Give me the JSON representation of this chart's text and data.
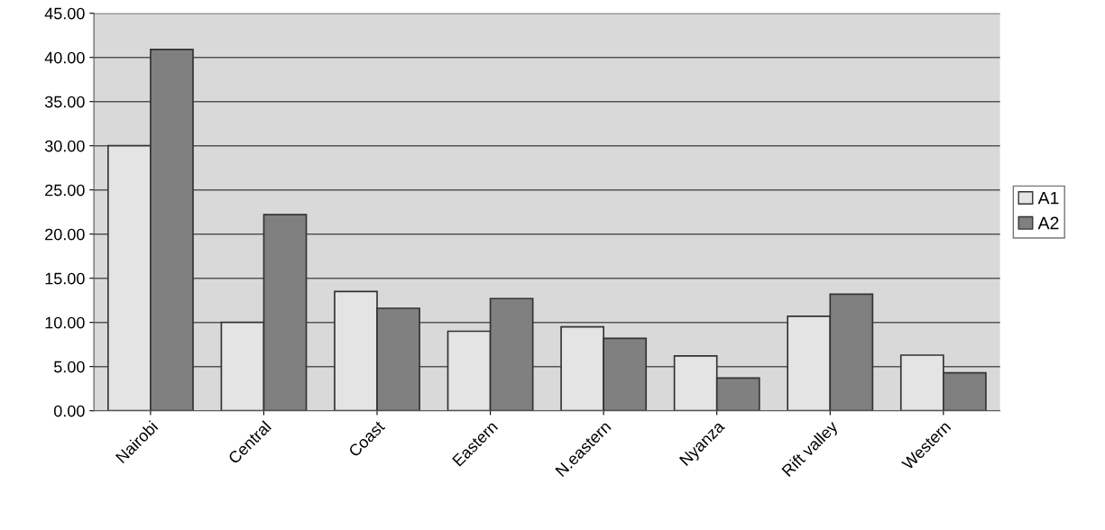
{
  "chart_data": {
    "type": "bar",
    "categories": [
      "Nairobi",
      "Central",
      "Coast",
      "Eastern",
      "N.eastern",
      "Nyanza",
      "Rift valley",
      "Western"
    ],
    "series": [
      {
        "name": "A1",
        "color": "#e4e4e4",
        "values": [
          30.0,
          10.0,
          13.5,
          9.0,
          9.5,
          6.2,
          10.7,
          6.3
        ]
      },
      {
        "name": "A2",
        "color": "#808080",
        "values": [
          40.9,
          22.2,
          11.6,
          12.7,
          8.2,
          3.7,
          13.2,
          4.3
        ]
      }
    ],
    "ylim": [
      0,
      45
    ],
    "yticks": [
      {
        "value": 0,
        "label": "0.00"
      },
      {
        "value": 5,
        "label": "5.00"
      },
      {
        "value": 10,
        "label": "10.00"
      },
      {
        "value": 15,
        "label": "15.00"
      },
      {
        "value": 20,
        "label": "20.00"
      },
      {
        "value": 25,
        "label": "25.00"
      },
      {
        "value": 30,
        "label": "30.00"
      },
      {
        "value": 35,
        "label": "35.00"
      },
      {
        "value": 40,
        "label": "40.00"
      },
      {
        "value": 45,
        "label": "45.00"
      }
    ],
    "grid": "y",
    "legend": "right"
  }
}
